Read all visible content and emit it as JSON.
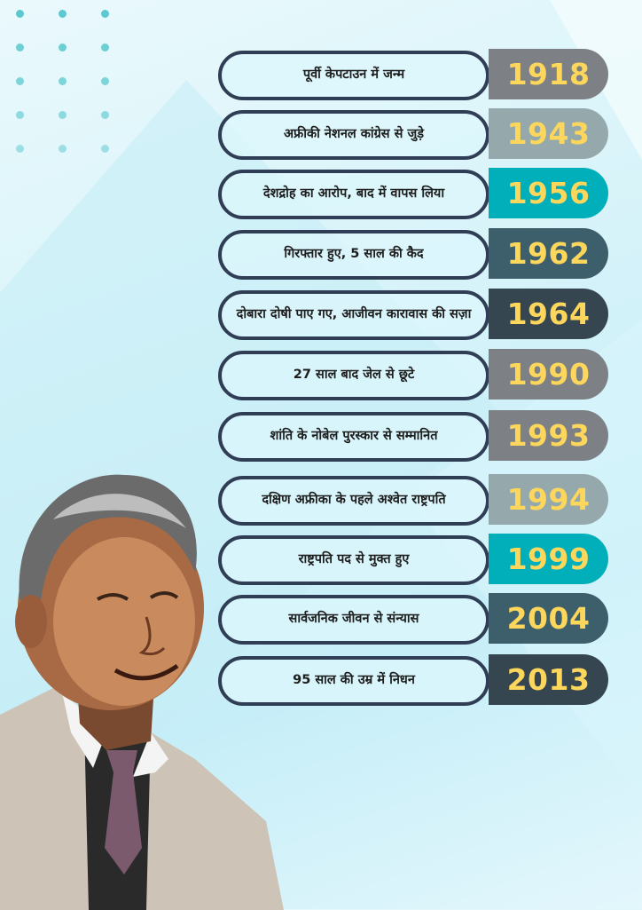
{
  "timeline": [
    {
      "event": "पूर्वी केपटाउन में जन्म",
      "year": "1918",
      "color": "#7d8185"
    },
    {
      "event": "अफ्रीकी नेशनल कांग्रेस से जुड़े",
      "year": "1943",
      "color": "#95a9ad"
    },
    {
      "event": "देशद्रोह का आरोप, बाद में वापस लिया",
      "year": "1956",
      "color": "#00afb9"
    },
    {
      "event": "गिरफ्तार हुए, 5 साल की कैद",
      "year": "1962",
      "color": "#3d5f6b"
    },
    {
      "event": "दोबारा दोषी पाए गए, आजीवन कारावास की सज़ा",
      "year": "1964",
      "color": "#354651"
    },
    {
      "event": "27 साल बाद जेल से छूटे",
      "year": "1990",
      "color": "#7d8185"
    },
    {
      "event": "शांति के नोबेल पुरस्कार से सम्मानित",
      "year": "1993",
      "color": "#7d8185"
    },
    {
      "event": "दक्षिण अफ्रीका के पहले अश्वेत राष्ट्रपति",
      "year": "1994",
      "color": "#95a9ad"
    },
    {
      "event": "राष्ट्रपति पद से मुक्त हुए",
      "year": "1999",
      "color": "#00afb9"
    },
    {
      "event": "सार्वजनिक जीवन से संन्यास",
      "year": "2004",
      "color": "#3d5f6b"
    },
    {
      "event": "95 साल की उम्र में निधन",
      "year": "2013",
      "color": "#354651"
    }
  ],
  "colors": {
    "year_text": "#fdd65c",
    "pill_border": "#2f3d55",
    "dots": "#5cc8d0"
  },
  "portrait": {
    "icon": "portrait-illustration"
  }
}
